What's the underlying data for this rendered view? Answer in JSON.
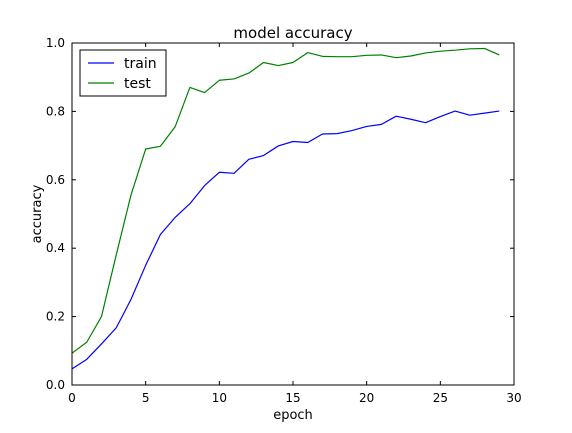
{
  "chart_data": {
    "type": "line",
    "title": "model accuracy",
    "xlabel": "epoch",
    "ylabel": "accuracy",
    "xlim": [
      0,
      30
    ],
    "ylim": [
      0.0,
      1.0
    ],
    "x_ticks": [
      0,
      5,
      10,
      15,
      20,
      25,
      30
    ],
    "y_ticks": [
      0.0,
      0.2,
      0.4,
      0.6,
      0.8,
      1.0
    ],
    "x_tick_labels": [
      "0",
      "5",
      "10",
      "15",
      "20",
      "25",
      "30"
    ],
    "y_tick_labels": [
      "0.0",
      "0.2",
      "0.4",
      "0.6",
      "0.8",
      "1.0"
    ],
    "grid": false,
    "legend_position": "top-left",
    "x": [
      0,
      1,
      2,
      3,
      4,
      5,
      6,
      7,
      8,
      9,
      10,
      11,
      12,
      13,
      14,
      15,
      16,
      17,
      18,
      19,
      20,
      21,
      22,
      23,
      24,
      25,
      26,
      27,
      28,
      29
    ],
    "series": [
      {
        "name": "train",
        "color": "#0000ff",
        "values": [
          0.047,
          0.075,
          0.12,
          0.167,
          0.25,
          0.35,
          0.44,
          0.49,
          0.53,
          0.583,
          0.622,
          0.619,
          0.66,
          0.671,
          0.699,
          0.712,
          0.709,
          0.734,
          0.735,
          0.744,
          0.756,
          0.762,
          0.786,
          0.777,
          0.767,
          0.785,
          0.801,
          0.789,
          0.795,
          0.801
        ]
      },
      {
        "name": "test",
        "color": "#008000",
        "values": [
          0.093,
          0.125,
          0.2,
          0.38,
          0.555,
          0.69,
          0.698,
          0.755,
          0.87,
          0.855,
          0.891,
          0.895,
          0.912,
          0.943,
          0.934,
          0.943,
          0.972,
          0.961,
          0.96,
          0.96,
          0.964,
          0.965,
          0.957,
          0.962,
          0.971,
          0.976,
          0.979,
          0.983,
          0.984,
          0.965
        ]
      }
    ]
  }
}
